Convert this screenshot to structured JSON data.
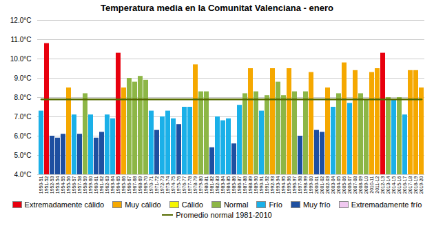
{
  "chart_data": {
    "type": "bar",
    "title": "Temperatura media en la Comunitat Valenciana - enero",
    "categories": [
      "1950-51",
      "1951-52",
      "1952-53",
      "1953-54",
      "1954-55",
      "1955-56",
      "1956-57",
      "1957-58",
      "1958-59",
      "1959-60",
      "1960-61",
      "1961-62",
      "1962-63",
      "1963-64",
      "1964-65",
      "1965-66",
      "1966-67",
      "1967-68",
      "1968-69",
      "1969-70",
      "1970-71",
      "1971-72",
      "1972-73",
      "1973-74",
      "1974-75",
      "1975-76",
      "1976-77",
      "1977-78",
      "1978-79",
      "1979-80",
      "1980-81",
      "1981-82",
      "1982-83",
      "1983-84",
      "1984-85",
      "1985-86",
      "1986-87",
      "1987-88",
      "1988-89",
      "1989-90",
      "1990-91",
      "1991-92",
      "1992-93",
      "1993-94",
      "1994-95",
      "1995-96",
      "1996-97",
      "1997-98",
      "1998-99",
      "1999-00",
      "2000-01",
      "2001-02",
      "2002-03",
      "2003-04",
      "2004-05",
      "2005-06",
      "2006-07",
      "2007-08",
      "2008-09",
      "2009-10",
      "2010-11",
      "2011-12",
      "2012-13",
      "2013-14",
      "2014-15",
      "2015-16",
      "2016-17",
      "2017-18",
      "2018-19",
      "2019-20"
    ],
    "series": [
      {
        "name": "Extremadamente cálido",
        "color": "#e8000e",
        "values": [
          null,
          10.8,
          null,
          null,
          null,
          null,
          null,
          null,
          null,
          null,
          null,
          null,
          null,
          null,
          10.3,
          null,
          null,
          null,
          null,
          null,
          null,
          null,
          null,
          null,
          null,
          null,
          null,
          null,
          null,
          null,
          null,
          null,
          null,
          null,
          null,
          null,
          null,
          null,
          null,
          null,
          null,
          null,
          null,
          null,
          null,
          null,
          null,
          null,
          null,
          null,
          null,
          null,
          null,
          null,
          null,
          null,
          null,
          null,
          null,
          null,
          null,
          null,
          10.3,
          null,
          null,
          null,
          null,
          null,
          null,
          null
        ]
      },
      {
        "name": "Muy cálido",
        "color": "#f5a800",
        "values": [
          null,
          null,
          null,
          null,
          null,
          8.5,
          null,
          null,
          null,
          null,
          null,
          null,
          null,
          null,
          null,
          8.5,
          null,
          null,
          null,
          null,
          null,
          null,
          null,
          null,
          null,
          null,
          null,
          null,
          9.7,
          null,
          null,
          null,
          null,
          null,
          null,
          null,
          null,
          null,
          9.5,
          null,
          null,
          null,
          9.5,
          null,
          null,
          9.5,
          null,
          null,
          null,
          9.3,
          null,
          null,
          8.5,
          null,
          null,
          9.8,
          null,
          9.4,
          null,
          null,
          9.3,
          9.5,
          null,
          null,
          null,
          null,
          null,
          9.4,
          9.4,
          8.5
        ]
      },
      {
        "name": "Cálido",
        "color": "#f5f500",
        "values": [
          null,
          null,
          null,
          null,
          null,
          null,
          null,
          null,
          null,
          null,
          null,
          null,
          null,
          null,
          null,
          null,
          null,
          null,
          null,
          null,
          null,
          null,
          null,
          null,
          null,
          null,
          null,
          null,
          null,
          null,
          null,
          null,
          null,
          null,
          null,
          null,
          null,
          null,
          null,
          null,
          null,
          null,
          null,
          null,
          null,
          null,
          null,
          null,
          null,
          null,
          null,
          null,
          null,
          null,
          null,
          null,
          null,
          null,
          null,
          null,
          null,
          null,
          null,
          null,
          null,
          null,
          null,
          null,
          null,
          null
        ]
      },
      {
        "name": "Normal",
        "color": "#8db646",
        "values": [
          null,
          null,
          null,
          null,
          null,
          null,
          null,
          null,
          8.2,
          null,
          null,
          null,
          null,
          null,
          null,
          null,
          9.0,
          8.8,
          9.1,
          8.9,
          null,
          null,
          null,
          null,
          null,
          null,
          null,
          null,
          null,
          8.3,
          8.3,
          null,
          null,
          null,
          null,
          null,
          null,
          8.2,
          null,
          8.3,
          null,
          8.1,
          null,
          8.8,
          8.1,
          null,
          8.3,
          null,
          8.3,
          null,
          null,
          null,
          null,
          null,
          8.2,
          null,
          null,
          null,
          8.2,
          7.9,
          null,
          null,
          null,
          8.0,
          null,
          8.0,
          null,
          null,
          null,
          null
        ]
      },
      {
        "name": "Frío",
        "color": "#1ab0e8",
        "values": [
          7.3,
          null,
          null,
          null,
          null,
          null,
          7.1,
          null,
          null,
          7.1,
          null,
          null,
          7.1,
          6.9,
          null,
          null,
          null,
          null,
          null,
          null,
          7.3,
          null,
          7.0,
          7.3,
          6.9,
          null,
          7.5,
          7.5,
          null,
          null,
          null,
          null,
          7.0,
          6.8,
          6.9,
          null,
          7.6,
          null,
          null,
          null,
          7.3,
          null,
          null,
          null,
          null,
          null,
          null,
          null,
          null,
          null,
          null,
          null,
          null,
          7.5,
          null,
          null,
          7.7,
          null,
          null,
          null,
          null,
          null,
          null,
          null,
          7.9,
          null,
          7.1,
          null,
          null,
          null
        ]
      },
      {
        "name": "Muy frío",
        "color": "#1e4fa0",
        "values": [
          null,
          null,
          6.0,
          5.9,
          6.1,
          null,
          null,
          6.1,
          null,
          null,
          5.9,
          6.2,
          null,
          null,
          null,
          null,
          null,
          null,
          null,
          null,
          null,
          6.3,
          null,
          null,
          null,
          6.6,
          null,
          null,
          null,
          null,
          null,
          5.4,
          null,
          null,
          null,
          5.6,
          null,
          null,
          null,
          null,
          null,
          null,
          null,
          null,
          null,
          null,
          null,
          6.0,
          null,
          null,
          6.3,
          6.2,
          null,
          null,
          null,
          null,
          null,
          null,
          null,
          null,
          null,
          null,
          null,
          null,
          null,
          null,
          null,
          null,
          null,
          null
        ]
      },
      {
        "name": "Extremadamente frío",
        "color": "#f0c8f0",
        "values": [
          null,
          null,
          null,
          null,
          null,
          null,
          null,
          null,
          null,
          null,
          null,
          null,
          null,
          null,
          null,
          null,
          null,
          null,
          null,
          null,
          null,
          null,
          null,
          null,
          null,
          null,
          null,
          null,
          null,
          null,
          null,
          null,
          null,
          null,
          null,
          null,
          null,
          null,
          null,
          null,
          null,
          null,
          null,
          null,
          null,
          null,
          null,
          null,
          null,
          null,
          null,
          null,
          null,
          null,
          null,
          null,
          null,
          null,
          null,
          null,
          null,
          null,
          null,
          null,
          null,
          null,
          null,
          null,
          null,
          null
        ]
      },
      {
        "name": "Promedio normal 1981-2010",
        "type": "line",
        "color": "#556b00",
        "values": [
          7.9,
          7.9,
          7.9,
          7.9,
          7.9,
          7.9,
          7.9,
          7.9,
          7.9,
          7.9,
          7.9,
          7.9,
          7.9,
          7.9,
          7.9,
          7.9,
          7.9,
          7.9,
          7.9,
          7.9,
          7.9,
          7.9,
          7.9,
          7.9,
          7.9,
          7.9,
          7.9,
          7.9,
          7.9,
          7.9,
          7.9,
          7.9,
          7.9,
          7.9,
          7.9,
          7.9,
          7.9,
          7.9,
          7.9,
          7.9,
          7.9,
          7.9,
          7.9,
          7.9,
          7.9,
          7.9,
          7.9,
          7.9,
          7.9,
          7.9,
          7.9,
          7.9,
          7.9,
          7.9,
          7.9,
          7.9,
          7.9,
          7.9,
          7.9,
          7.9,
          7.9,
          7.9,
          7.9,
          7.9,
          7.9,
          7.9,
          7.9,
          7.9,
          7.9,
          7.9
        ]
      }
    ],
    "ylim": [
      4.0,
      12.0
    ],
    "yticks": [
      {
        "value": 4.0,
        "label": "4.0°C"
      },
      {
        "value": 5.0,
        "label": "5.0°C"
      },
      {
        "value": 6.0,
        "label": "6.0°C"
      },
      {
        "value": 7.0,
        "label": "7.0°C"
      },
      {
        "value": 8.0,
        "label": "8.0°C"
      },
      {
        "value": 9.0,
        "label": "9.0°C"
      },
      {
        "value": 10.0,
        "label": "10.0°C"
      },
      {
        "value": 11.0,
        "label": "11.0°C"
      },
      {
        "value": 12.0,
        "label": "12.0°C"
      }
    ],
    "grid": true,
    "legend": "bottom"
  }
}
